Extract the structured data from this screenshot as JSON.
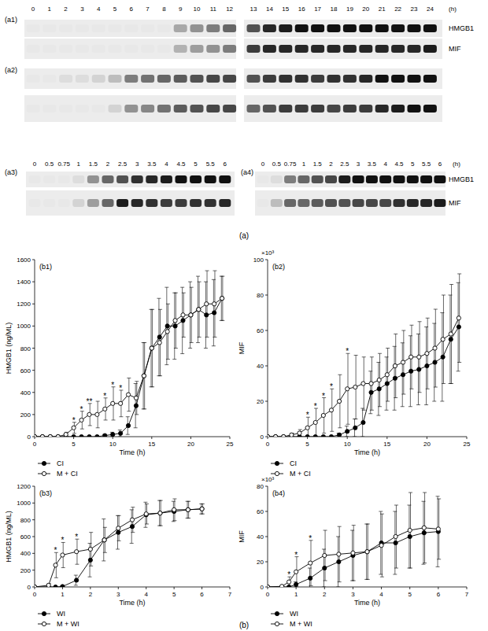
{
  "figure_labels": {
    "a": "(a)",
    "b": "(b)"
  },
  "blots": {
    "protein_labels": [
      "HMGB1",
      "MIF"
    ],
    "unit": "(h)",
    "lanes_24h": [
      "0",
      "1",
      "2",
      "3",
      "4",
      "5",
      "6",
      "7",
      "8",
      "9",
      "10",
      "11",
      "12",
      "13",
      "14",
      "15",
      "16",
      "17",
      "18",
      "19",
      "20",
      "21",
      "22",
      "23",
      "24"
    ],
    "lanes_6h": [
      "0",
      "0.5",
      "0.75",
      "1",
      "1.5",
      "2",
      "2.5",
      "3",
      "3.5",
      "4",
      "4.5",
      "5",
      "5.5",
      "6"
    ],
    "panels": [
      {
        "label": "(a1)",
        "HMGB1": [
          0,
          0,
          0,
          0,
          0,
          0,
          0,
          0,
          0,
          0.3,
          0.4,
          0.5,
          0.6,
          0.7,
          0.9,
          0.95,
          1,
          1,
          1,
          1,
          1,
          1,
          1,
          1,
          1
        ],
        "MIF": [
          0,
          0,
          0,
          0,
          0,
          0,
          0,
          0,
          0,
          0.25,
          0.35,
          0.4,
          0.5,
          0.8,
          0.9,
          0.9,
          0.9,
          0.9,
          0.9,
          0.9,
          0.9,
          0.9,
          0.9,
          0.9,
          0.95
        ]
      },
      {
        "label": "(a2)",
        "HMGB1": [
          0,
          0,
          0.05,
          0.05,
          0.1,
          0.2,
          0.5,
          0.55,
          0.6,
          0.65,
          0.7,
          0.75,
          0.75,
          0.7,
          0.8,
          0.85,
          0.85,
          0.8,
          0.85,
          0.85,
          0.9,
          1,
          1,
          1,
          1
        ],
        "MIF": [
          0,
          0,
          0,
          0,
          0,
          0.1,
          0.4,
          0.45,
          0.55,
          0.65,
          0.7,
          0.75,
          0.75,
          0.6,
          0.7,
          0.8,
          0.8,
          0.8,
          0.75,
          0.8,
          0.8,
          0.9,
          0.95,
          1,
          1
        ]
      },
      {
        "label": "(a3)",
        "HMGB1": [
          0,
          0,
          0,
          0.05,
          0.4,
          0.6,
          0.7,
          0.85,
          0.9,
          0.95,
          1,
          1,
          1,
          1
        ],
        "MIF": [
          0,
          0,
          0,
          0.1,
          0.35,
          0.6,
          0.95,
          0.9,
          0.85,
          0.8,
          0.8,
          0.85,
          0.85,
          0.9
        ]
      },
      {
        "label": "(a4)",
        "HMGB1": [
          0,
          0.05,
          0.5,
          0.6,
          0.7,
          0.75,
          0.95,
          1,
          1,
          1,
          1,
          1,
          1,
          1
        ],
        "MIF": [
          0,
          0.2,
          0.6,
          0.6,
          0.65,
          0.7,
          0.7,
          0.75,
          0.75,
          0.75,
          0.85,
          0.9,
          0.9,
          0.95
        ]
      }
    ]
  },
  "chart_data": [
    {
      "type": "line",
      "label": "(b1)",
      "xlabel": "Time (h)",
      "ylabel": "HMGB1 (ng/ML)",
      "grid": false,
      "legend": "bottom",
      "x": [
        0,
        1,
        2,
        3,
        4,
        5,
        6,
        7,
        8,
        9,
        10,
        11,
        12,
        13,
        14,
        15,
        16,
        17,
        18,
        19,
        20,
        21,
        22,
        23,
        24
      ],
      "xlim": [
        0,
        25
      ],
      "xticks": [
        0,
        5,
        10,
        15,
        20,
        25
      ],
      "ylim": [
        0,
        1600
      ],
      "yticks": [
        0,
        200,
        400,
        600,
        800,
        1000,
        1200,
        1400,
        1600
      ],
      "series": [
        {
          "name": "CI",
          "color": "#000000",
          "marker": "filled",
          "line_style": "solid",
          "values": [
            0,
            0,
            0,
            0,
            0,
            0,
            0,
            0,
            0,
            10,
            20,
            30,
            100,
            280,
            550,
            800,
            900,
            1000,
            1000,
            1050,
            1100,
            1150,
            1100,
            1120,
            1250
          ],
          "errors": [
            0,
            0,
            0,
            0,
            0,
            0,
            0,
            0,
            0,
            10,
            20,
            30,
            80,
            200,
            300,
            350,
            350,
            350,
            300,
            300,
            300,
            300,
            300,
            300,
            200
          ]
        },
        {
          "name": "M + CI",
          "color": "#000000",
          "marker": "open",
          "line_style": "solid",
          "values": [
            0,
            0,
            0,
            0,
            20,
            80,
            150,
            200,
            200,
            250,
            300,
            300,
            380,
            350,
            550,
            800,
            850,
            950,
            1050,
            1100,
            1100,
            1150,
            1200,
            1200,
            1250
          ],
          "errors": [
            0,
            0,
            0,
            0,
            20,
            50,
            80,
            100,
            120,
            100,
            150,
            120,
            150,
            150,
            300,
            350,
            300,
            250,
            250,
            200,
            250,
            250,
            300,
            300,
            200
          ]
        }
      ],
      "annotations": [
        {
          "x": 5,
          "text": "*"
        },
        {
          "x": 6,
          "text": "*"
        },
        {
          "x": 7,
          "text": "**"
        },
        {
          "x": 9,
          "text": "*"
        },
        {
          "x": 10,
          "text": "*"
        },
        {
          "x": 11,
          "text": "*"
        }
      ]
    },
    {
      "type": "line",
      "label": "(b2)",
      "xlabel": "Time (h)",
      "ylabel": "MIF",
      "ylabel_multiplier": "×10³",
      "grid": false,
      "legend": "bottom",
      "x": [
        0,
        1,
        2,
        3,
        4,
        5,
        6,
        7,
        8,
        9,
        10,
        11,
        12,
        13,
        14,
        15,
        16,
        17,
        18,
        19,
        20,
        21,
        22,
        23,
        24
      ],
      "xlim": [
        0,
        25
      ],
      "xticks": [
        0,
        5,
        10,
        15,
        20,
        25
      ],
      "ylim": [
        0,
        100
      ],
      "yticks": [
        0,
        20,
        40,
        60,
        80,
        100
      ],
      "series": [
        {
          "name": "CI",
          "color": "#000000",
          "marker": "filled",
          "line_style": "solid",
          "values": [
            0,
            0,
            0,
            0,
            0,
            0,
            0,
            0,
            0,
            1,
            3,
            5,
            8,
            25,
            27,
            30,
            33,
            35,
            37,
            38,
            40,
            42,
            45,
            55,
            62
          ],
          "errors": [
            0,
            0,
            0,
            0,
            0,
            0,
            0,
            0,
            0,
            1,
            3,
            5,
            8,
            12,
            15,
            15,
            18,
            18,
            20,
            20,
            22,
            22,
            25,
            25,
            25
          ]
        },
        {
          "name": "M + CI",
          "color": "#000000",
          "marker": "open",
          "line_style": "solid",
          "values": [
            0,
            0,
            0,
            1,
            2,
            5,
            8,
            12,
            15,
            20,
            27,
            28,
            30,
            30,
            32,
            35,
            40,
            42,
            45,
            45,
            47,
            50,
            55,
            58,
            67
          ],
          "errors": [
            0,
            0,
            0,
            1,
            2,
            6,
            8,
            10,
            12,
            15,
            20,
            18,
            15,
            15,
            15,
            15,
            18,
            18,
            18,
            20,
            20,
            22,
            25,
            28,
            25
          ]
        }
      ],
      "annotations": [
        {
          "x": 5,
          "text": "*"
        },
        {
          "x": 6,
          "text": "*"
        },
        {
          "x": 7,
          "text": "*"
        },
        {
          "x": 8,
          "text": "*"
        },
        {
          "x": 10,
          "text": "*"
        }
      ]
    },
    {
      "type": "line",
      "label": "(b3)",
      "xlabel": "Time (h)",
      "ylabel": "HMGB1 (ng/ML)",
      "grid": false,
      "legend": "bottom",
      "x": [
        0,
        0.5,
        0.75,
        1,
        1.5,
        2,
        2.5,
        3,
        3.5,
        4,
        4.5,
        5,
        5.5,
        6
      ],
      "xlim": [
        0,
        7
      ],
      "xticks": [
        0,
        1,
        2,
        3,
        4,
        5,
        6,
        7
      ],
      "ylim": [
        0,
        1200
      ],
      "yticks": [
        0,
        200,
        400,
        600,
        800,
        1000,
        1200
      ],
      "series": [
        {
          "name": "WI",
          "color": "#000000",
          "marker": "filled",
          "line_style": "solid",
          "values": [
            0,
            0,
            0,
            5,
            80,
            320,
            560,
            650,
            720,
            860,
            880,
            900,
            920,
            930
          ],
          "errors": [
            0,
            0,
            0,
            5,
            60,
            200,
            250,
            200,
            200,
            150,
            150,
            120,
            100,
            60
          ]
        },
        {
          "name": "M + WI",
          "color": "#000000",
          "marker": "open",
          "line_style": "solid",
          "values": [
            0,
            20,
            260,
            380,
            420,
            450,
            560,
            700,
            800,
            870,
            880,
            920,
            920,
            930
          ],
          "errors": [
            0,
            20,
            150,
            150,
            150,
            200,
            150,
            150,
            150,
            120,
            150,
            130,
            100,
            60
          ]
        }
      ],
      "annotations": [
        {
          "x": 0.75,
          "text": "*"
        },
        {
          "x": 1,
          "text": "*"
        },
        {
          "x": 1.5,
          "text": "*"
        }
      ]
    },
    {
      "type": "line",
      "label": "(b4)",
      "xlabel": "Time (h)",
      "ylabel": "MIF",
      "ylabel_multiplier": "×10³",
      "grid": false,
      "legend": "bottom",
      "x": [
        0,
        0.5,
        0.75,
        1,
        1.5,
        2,
        2.5,
        3,
        3.5,
        4,
        4.5,
        5,
        5.5,
        6
      ],
      "xlim": [
        0,
        7
      ],
      "xticks": [
        0,
        1,
        2,
        3,
        4,
        5,
        6,
        7
      ],
      "ylim": [
        0,
        80
      ],
      "yticks": [
        0,
        20,
        40,
        60,
        80
      ],
      "series": [
        {
          "name": "WI",
          "color": "#000000",
          "marker": "filled",
          "line_style": "solid",
          "values": [
            0,
            0,
            0,
            2,
            7,
            15,
            20,
            25,
            28,
            35,
            35,
            40,
            43,
            44
          ],
          "errors": [
            0,
            0,
            0,
            2,
            8,
            15,
            20,
            20,
            22,
            25,
            25,
            25,
            25,
            28
          ]
        },
        {
          "name": "M + WI",
          "color": "#000000",
          "marker": "open",
          "line_style": "solid",
          "values": [
            0,
            0.5,
            4,
            12,
            19,
            25,
            26,
            27,
            28,
            33,
            40,
            45,
            47,
            46
          ],
          "errors": [
            0,
            0.5,
            4,
            12,
            18,
            20,
            22,
            22,
            22,
            25,
            25,
            30,
            28,
            24
          ]
        }
      ],
      "annotations": [
        {
          "x": 0.75,
          "text": "*"
        },
        {
          "x": 1,
          "text": "*"
        },
        {
          "x": 1.5,
          "text": "*"
        }
      ]
    }
  ]
}
